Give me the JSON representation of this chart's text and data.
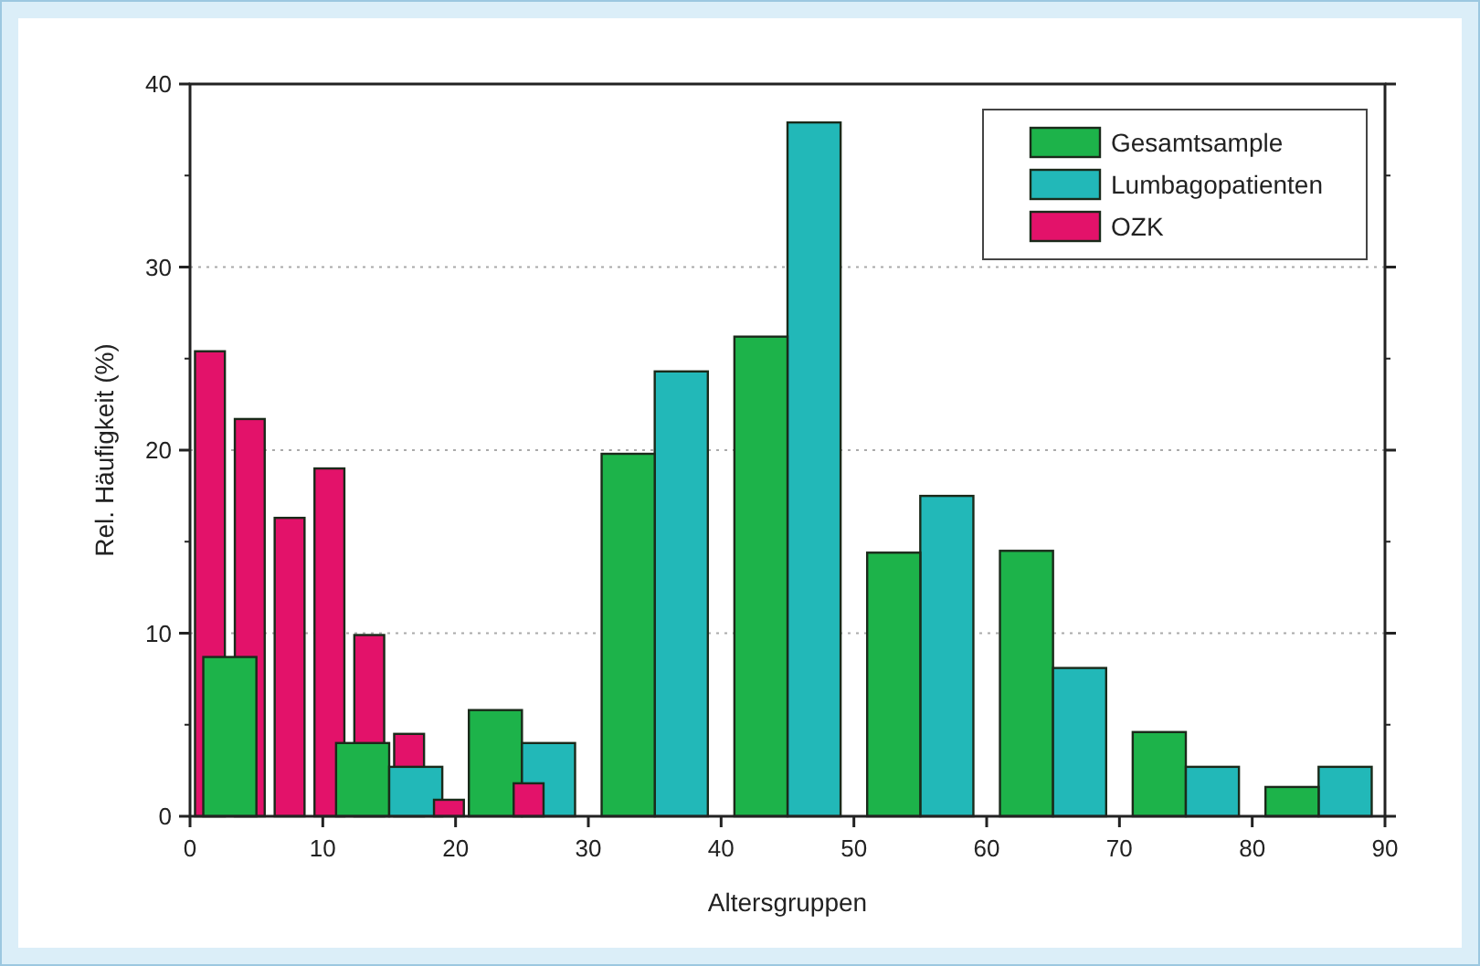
{
  "chart_data": {
    "type": "bar",
    "xlabel": "Altersgruppen",
    "ylabel": "Rel. Häufigkeit (%)",
    "xlim": [
      0,
      90
    ],
    "xticks": [
      0,
      10,
      20,
      30,
      40,
      50,
      60,
      70,
      80,
      90
    ],
    "ylim": [
      0,
      40
    ],
    "yticks": [
      0,
      10,
      20,
      30,
      40
    ],
    "grid": "y",
    "legend": "top right",
    "series": [
      {
        "name": "Gesamtsample",
        "color": "#1db34a",
        "x": [
          3,
          13,
          23,
          33,
          43,
          53,
          63,
          73,
          83
        ],
        "values": [
          8.7,
          4.0,
          5.8,
          19.8,
          26.2,
          14.4,
          14.5,
          4.6,
          1.6
        ]
      },
      {
        "name": "Lumbagopatienten",
        "color": "#22b8b8",
        "x": [
          17,
          27,
          37,
          47,
          57,
          67,
          77,
          87
        ],
        "values": [
          2.7,
          4.0,
          24.3,
          37.9,
          17.5,
          8.1,
          2.7,
          2.7
        ]
      },
      {
        "name": "OZK",
        "color": "#e3126a",
        "x": [
          1.5,
          4.5,
          7.5,
          10.5,
          13.5,
          16.5,
          19.5,
          25.5
        ],
        "values": [
          25.4,
          21.7,
          16.3,
          19.0,
          9.9,
          4.5,
          0.9,
          1.8
        ]
      }
    ]
  }
}
